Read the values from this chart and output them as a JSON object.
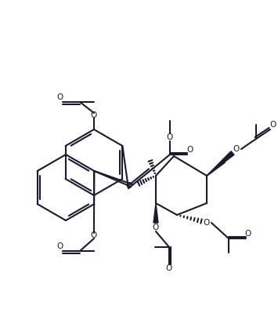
{
  "bg_color": "#ffffff",
  "line_color": "#1a1a2e",
  "line_width": 1.5,
  "figsize": [
    3.52,
    3.95
  ],
  "dpi": 100
}
